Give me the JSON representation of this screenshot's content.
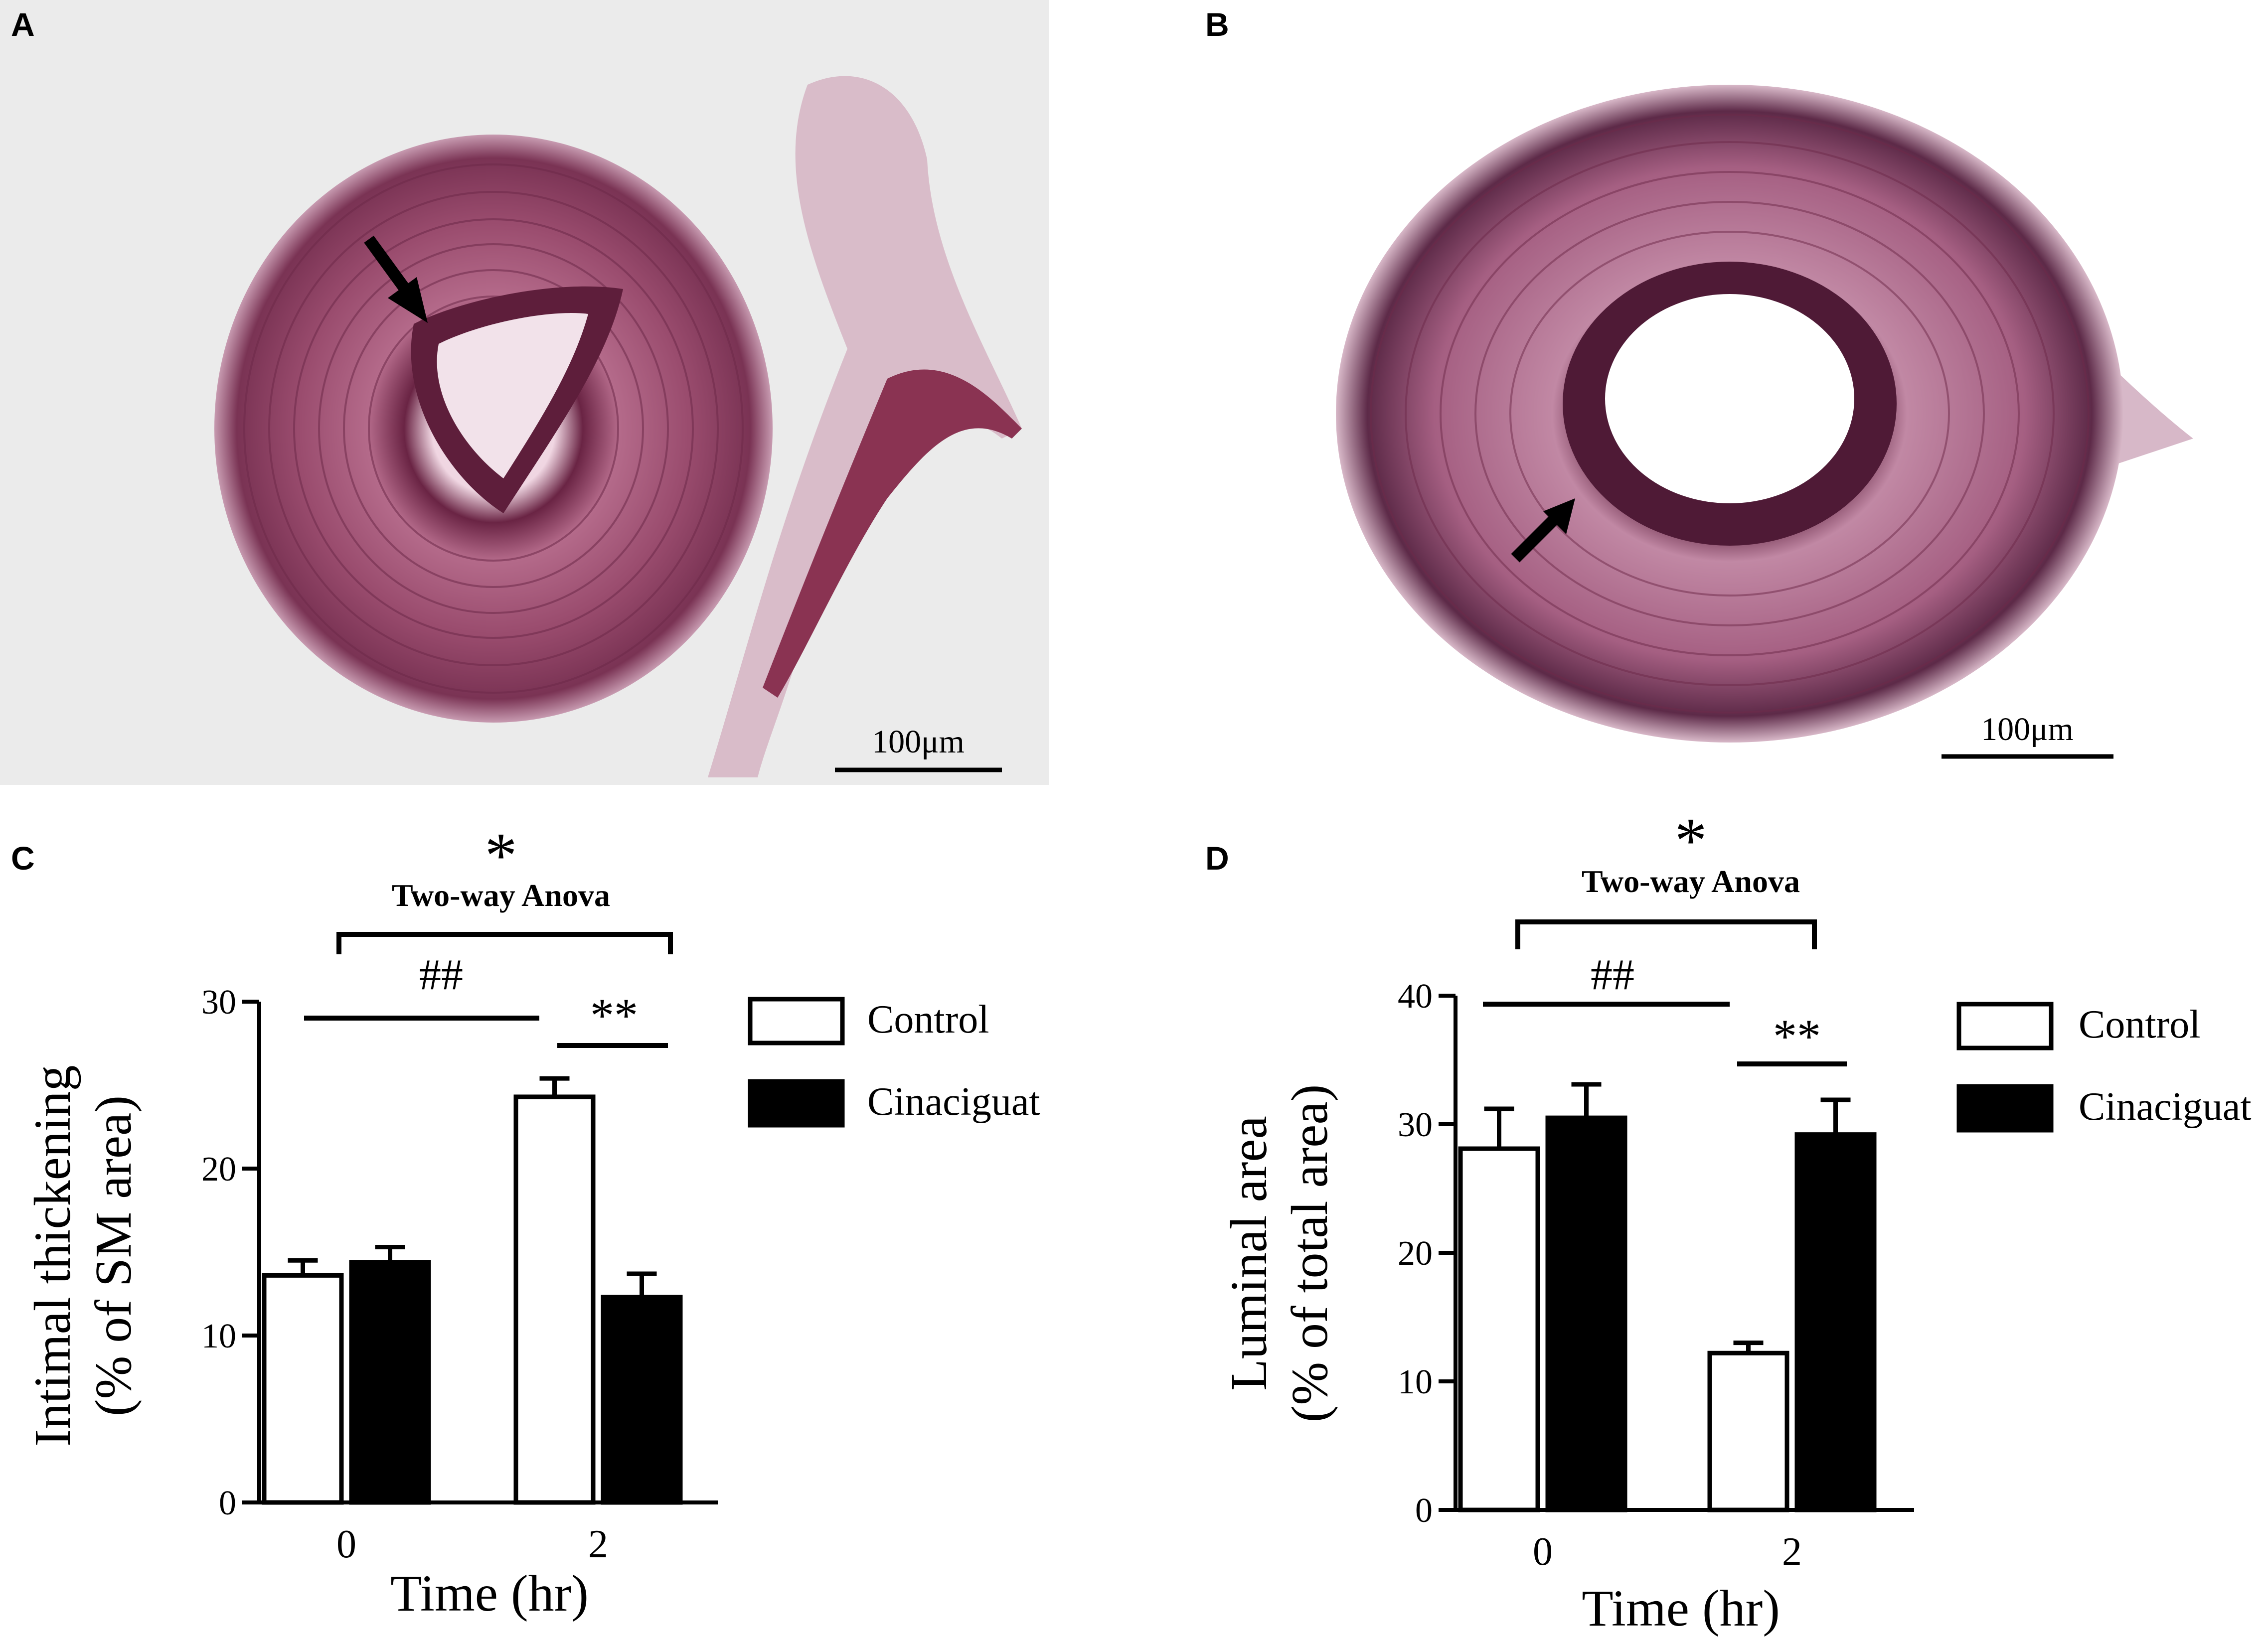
{
  "panels": {
    "a": {
      "letter": "A",
      "scale_bar": "100μm"
    },
    "b": {
      "letter": "B",
      "scale_bar": "100μm"
    },
    "c": {
      "letter": "C"
    },
    "d": {
      "letter": "D"
    }
  },
  "colors": {
    "tissue_stain": "#8a3a5c",
    "tissue_dark": "#4a1a33",
    "tissue_light": "#e8c8d6",
    "photo_background": "#ebebeb",
    "control_fill": "#ffffff",
    "cinaciguat_fill": "#000000"
  },
  "annotation_icons": [
    "arrow-icon",
    "arrow-icon"
  ],
  "chart_data": [
    {
      "type": "bar",
      "panel": "C",
      "categories": [
        "0",
        "2"
      ],
      "series": [
        {
          "name": "Control",
          "values": [
            13.6,
            24.3
          ],
          "errors": [
            0.9,
            1.1
          ]
        },
        {
          "name": "Cinaciguat",
          "values": [
            14.4,
            12.3
          ],
          "errors": [
            0.9,
            1.4
          ]
        }
      ],
      "xlabel": "Time (hr)",
      "ylabel": [
        "Intimal thickening",
        "(% of SM area)"
      ],
      "ylim": [
        0,
        30
      ],
      "yticks": [
        "0",
        "10",
        "20",
        "30"
      ],
      "legend_position": "right",
      "grid": false,
      "annotations": {
        "anova_star": "*",
        "anova_label": "Two-way Anova",
        "hash_label": "##",
        "double_star": "**"
      }
    },
    {
      "type": "bar",
      "panel": "D",
      "categories": [
        "0",
        "2"
      ],
      "series": [
        {
          "name": "Control",
          "values": [
            28.1,
            12.2
          ],
          "errors": [
            3.1,
            0.8
          ]
        },
        {
          "name": "Cinaciguat",
          "values": [
            30.5,
            29.2
          ],
          "errors": [
            2.6,
            2.7
          ]
        }
      ],
      "xlabel": "Time (hr)",
      "ylabel": [
        "Luminal area",
        "(% of total area)"
      ],
      "ylim": [
        0,
        40
      ],
      "yticks": [
        "0",
        "10",
        "20",
        "30",
        "40"
      ],
      "legend_position": "right",
      "grid": false,
      "annotations": {
        "anova_star": "*",
        "anova_label": "Two-way Anova",
        "hash_label": "##",
        "double_star": "**"
      }
    }
  ]
}
